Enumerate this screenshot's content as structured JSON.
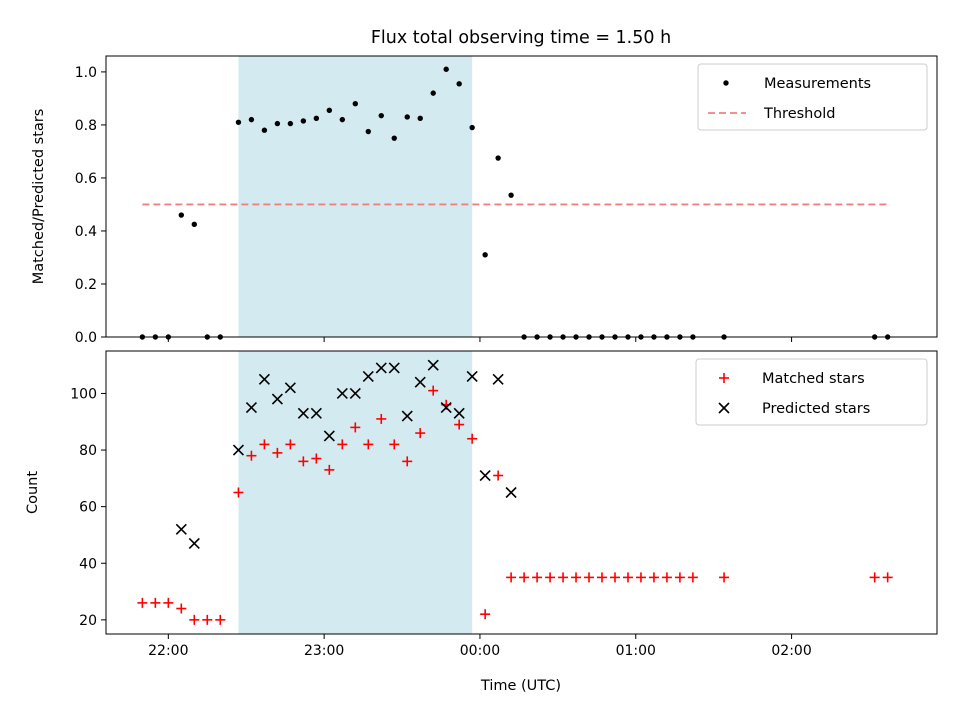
{
  "chart_data": {
    "type": "scatter",
    "title": "Flux total observing time = 1.50 h",
    "xlabel": "Time (UTC)",
    "x_ticks": [
      "22:00",
      "23:00",
      "00:00",
      "01:00",
      "02:00"
    ],
    "x_range": [
      "21:36",
      "02:56"
    ],
    "shaded_interval": {
      "start": "22:27",
      "end": "23:57",
      "color": "#d3eaf0"
    },
    "panels": [
      {
        "ylabel": "Matched/Predicted stars",
        "ylim": [
          0,
          1.06
        ],
        "y_ticks": [
          "0.0",
          "0.2",
          "0.4",
          "0.6",
          "0.8",
          "1.0"
        ],
        "legend_position": "top-right",
        "series": [
          {
            "name": "Measurements",
            "marker": "dot",
            "color": "#000000",
            "x": [
              "21:50",
              "21:55",
              "22:00",
              "22:05",
              "22:10",
              "22:15",
              "22:20",
              "22:27",
              "22:32",
              "22:37",
              "22:42",
              "22:47",
              "22:52",
              "22:57",
              "23:02",
              "23:07",
              "23:12",
              "23:17",
              "23:22",
              "23:27",
              "23:32",
              "23:37",
              "23:42",
              "23:47",
              "23:52",
              "23:57",
              "00:02",
              "00:07",
              "00:12",
              "00:17",
              "00:22",
              "00:27",
              "00:32",
              "00:37",
              "00:42",
              "00:47",
              "00:52",
              "00:57",
              "01:02",
              "01:07",
              "01:12",
              "01:17",
              "01:22",
              "01:34",
              "02:32",
              "02:37"
            ],
            "y": [
              0,
              0,
              0,
              0.46,
              0.425,
              0,
              0,
              0.81,
              0.82,
              0.78,
              0.805,
              0.805,
              0.815,
              0.825,
              0.855,
              0.82,
              0.88,
              0.775,
              0.835,
              0.75,
              0.83,
              0.825,
              0.92,
              1.01,
              0.955,
              0.79,
              0.31,
              0.675,
              0.535,
              0,
              0,
              0,
              0,
              0,
              0,
              0,
              0,
              0,
              0,
              0,
              0,
              0,
              0,
              0,
              0,
              0
            ]
          },
          {
            "name": "Threshold",
            "line": "dashed",
            "color": "#f08080",
            "x": [
              "21:50",
              "02:37"
            ],
            "y": [
              0.5,
              0.5
            ]
          }
        ]
      },
      {
        "ylabel": "Count",
        "ylim": [
          15,
          115
        ],
        "y_ticks": [
          "20",
          "40",
          "60",
          "80",
          "100"
        ],
        "legend_position": "top-right",
        "series": [
          {
            "name": "Matched stars",
            "marker": "plus",
            "color": "#ff0000",
            "x": [
              "21:50",
              "21:55",
              "22:00",
              "22:05",
              "22:10",
              "22:15",
              "22:20",
              "22:27",
              "22:32",
              "22:37",
              "22:42",
              "22:47",
              "22:52",
              "22:57",
              "23:02",
              "23:07",
              "23:12",
              "23:17",
              "23:22",
              "23:27",
              "23:32",
              "23:37",
              "23:42",
              "23:47",
              "23:52",
              "23:57",
              "00:02",
              "00:07",
              "00:12",
              "00:17",
              "00:22",
              "00:27",
              "00:32",
              "00:37",
              "00:42",
              "00:47",
              "00:52",
              "00:57",
              "01:02",
              "01:07",
              "01:12",
              "01:17",
              "01:22",
              "01:34",
              "02:32",
              "02:37"
            ],
            "y": [
              26,
              26,
              26,
              24,
              20,
              20,
              20,
              65,
              78,
              82,
              79,
              82,
              76,
              77,
              73,
              82,
              88,
              82,
              91,
              82,
              76,
              86,
              101,
              96,
              89,
              84,
              22,
              71,
              35,
              35,
              35,
              35,
              35,
              35,
              35,
              35,
              35,
              35,
              35,
              35,
              35,
              35,
              35,
              35,
              35,
              35
            ]
          },
          {
            "name": "Predicted stars",
            "marker": "x",
            "color": "#000000",
            "x": [
              "22:05",
              "22:10",
              "22:27",
              "22:32",
              "22:37",
              "22:42",
              "22:47",
              "22:52",
              "22:57",
              "23:02",
              "23:07",
              "23:12",
              "23:17",
              "23:22",
              "23:27",
              "23:32",
              "23:37",
              "23:42",
              "23:47",
              "23:52",
              "23:57",
              "00:02",
              "00:07",
              "00:12"
            ],
            "y": [
              52,
              47,
              80,
              95,
              105,
              98,
              102,
              93,
              93,
              85,
              100,
              100,
              106,
              109,
              109,
              92,
              104,
              110,
              95,
              93,
              106,
              71,
              105,
              65
            ]
          }
        ]
      }
    ]
  }
}
